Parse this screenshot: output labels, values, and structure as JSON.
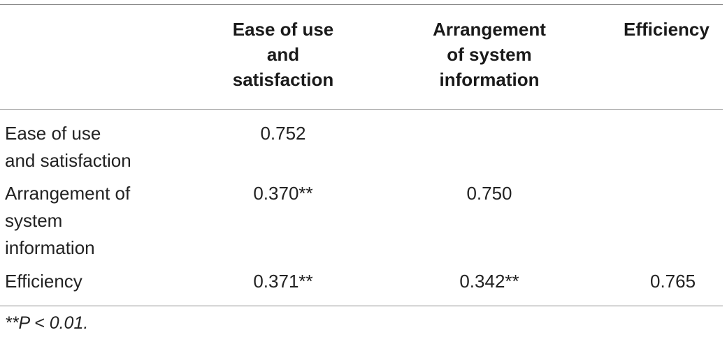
{
  "table": {
    "headers": [
      "",
      "Ease of use\nand\nsatisfaction",
      "Arrangement\nof system\ninformation",
      "Efficiency"
    ],
    "rows": [
      {
        "label": "Ease of use\nand satisfaction",
        "cells": [
          "0.752",
          "",
          ""
        ]
      },
      {
        "label": "Arrangement of\nsystem\ninformation",
        "cells": [
          "0.370**",
          "0.750",
          ""
        ]
      },
      {
        "label": "Efficiency",
        "cells": [
          "0.371**",
          "0.342**",
          "0.765"
        ]
      }
    ]
  },
  "footnote": "**P < 0.01."
}
